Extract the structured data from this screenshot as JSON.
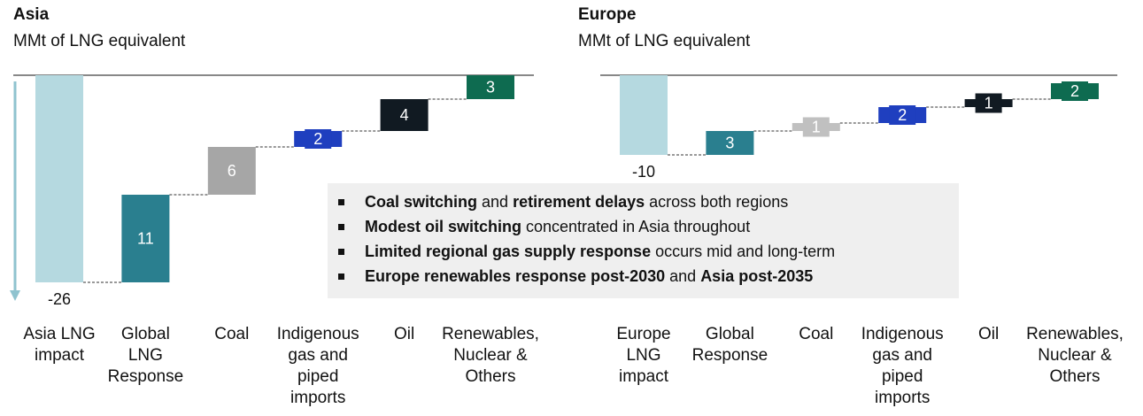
{
  "chart_data": [
    {
      "type": "waterfall",
      "title": "Asia",
      "subtitle": "MMt of LNG equivalent",
      "categories": [
        "Asia LNG\nimpact",
        "Global\nLNG\nResponse",
        "Coal",
        "Indigenous\ngas and\npiped\nimports",
        "Oil",
        "Renewables,\nNuclear &\nOthers"
      ],
      "values": [
        -26,
        11,
        6,
        2,
        4,
        3
      ],
      "colors": [
        "#b5d9e0",
        "#2a7f8f",
        "#a6a6a6",
        "#1f3fbf",
        "#111a22",
        "#0e6b50"
      ]
    },
    {
      "type": "waterfall",
      "title": "Europe",
      "subtitle": "MMt of LNG equivalent",
      "categories": [
        "Europe\nLNG\nimpact",
        "Global\nResponse",
        "Coal",
        "Indigenous\ngas and\npiped\nimports",
        "Oil",
        "Renewables,\nNuclear &\nOthers"
      ],
      "values": [
        -10,
        3,
        1,
        2,
        1,
        2
      ],
      "colors": [
        "#b5d9e0",
        "#2a7f8f",
        "#c0c0c0",
        "#1f3fbf",
        "#111a22",
        "#0e6b50"
      ]
    }
  ],
  "notes": [
    [
      {
        "text": "Coal switching",
        "bold": true
      },
      {
        "text": " and ",
        "bold": false
      },
      {
        "text": "retirement delays",
        "bold": true
      },
      {
        "text": " across both regions",
        "bold": false
      }
    ],
    [
      {
        "text": "Modest oil switching",
        "bold": true
      },
      {
        "text": " concentrated in Asia throughout",
        "bold": false
      }
    ],
    [
      {
        "text": "Limited regional gas supply response",
        "bold": true
      },
      {
        "text": " occurs mid and long-term",
        "bold": false
      }
    ],
    [
      {
        "text": "Europe renewables response post-2030",
        "bold": true
      },
      {
        "text": " and ",
        "bold": false
      },
      {
        "text": "Asia post-2035",
        "bold": true
      }
    ]
  ]
}
